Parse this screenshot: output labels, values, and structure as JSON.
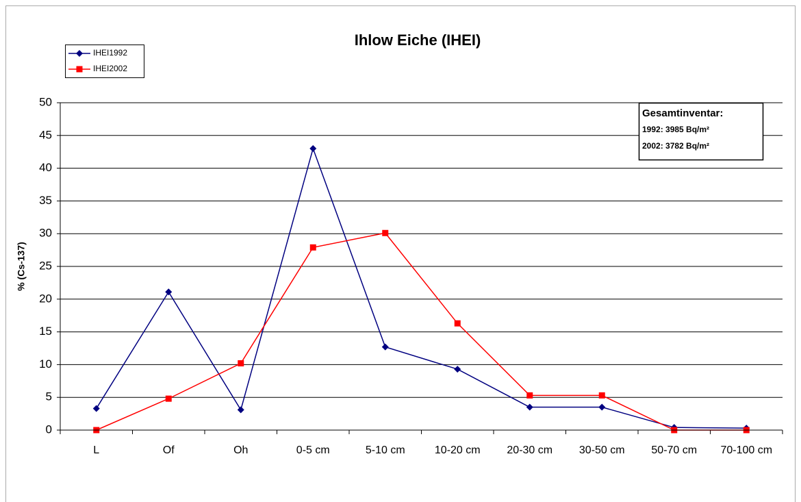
{
  "chart_data": {
    "type": "line",
    "title": "Ihlow Eiche (IHEI)",
    "y_label": "% (Cs-137)",
    "categories": [
      "L",
      "Of",
      "Oh",
      "0-5 cm",
      "5-10 cm",
      "10-20 cm",
      "20-30 cm",
      "30-50 cm",
      "50-70 cm",
      "70-100 cm"
    ],
    "series": [
      {
        "name": "IHEI1992",
        "color": "#000080",
        "marker": "diamond",
        "values": [
          3.3,
          21.1,
          3.1,
          43,
          12.7,
          9.3,
          3.5,
          3.5,
          0.4,
          0.3
        ]
      },
      {
        "name": "IHEI2002",
        "color": "#ff0000",
        "marker": "square",
        "values": [
          0,
          4.8,
          10.2,
          27.9,
          30.1,
          16.3,
          5.3,
          5.3,
          0,
          0
        ]
      }
    ],
    "ylim": [
      0,
      50
    ],
    "yticks": [
      0,
      5,
      10,
      15,
      20,
      25,
      30,
      35,
      40,
      45,
      50
    ],
    "grid": true,
    "legend": "top-left",
    "annotation": {
      "title": "Gesamtinventar:",
      "lines": [
        "1992: 3985 Bq/m²",
        "2002: 3782 Bq/m²"
      ]
    }
  }
}
